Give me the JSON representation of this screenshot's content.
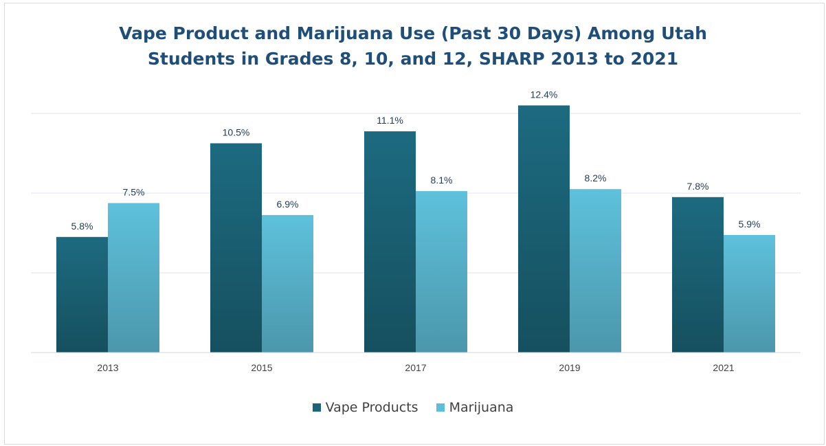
{
  "chart_data": {
    "type": "bar",
    "title_lines": [
      "Vape Product and Marijuana  Use (Past 30 Days) Among Utah",
      "Students in Grades 8, 10, and  12, SHARP 2013 to 2021"
    ],
    "categories": [
      "2013",
      "2015",
      "2017",
      "2019",
      "2021"
    ],
    "series": [
      {
        "name": "Vape Products",
        "values": [
          5.8,
          10.5,
          11.1,
          12.4,
          7.8
        ],
        "labels": [
          "5.8%",
          "10.5%",
          "11.1%",
          "12.4%",
          "7.8%"
        ],
        "color_top": "#1d6a80",
        "color_bottom": "#15505f",
        "legend_color": "#1c6478"
      },
      {
        "name": "Marijuana",
        "values": [
          7.5,
          6.9,
          8.1,
          8.2,
          5.9
        ],
        "labels": [
          "7.5%",
          "6.9%",
          "8.1%",
          "8.2%",
          "5.9%"
        ],
        "color_top": "#5ec1dc",
        "color_bottom": "#4b97ab",
        "legend_color": "#5bbfd9"
      }
    ],
    "ylim": [
      0,
      12
    ],
    "ygrid_step": 4,
    "grid": true,
    "legend_position": "bottom"
  }
}
